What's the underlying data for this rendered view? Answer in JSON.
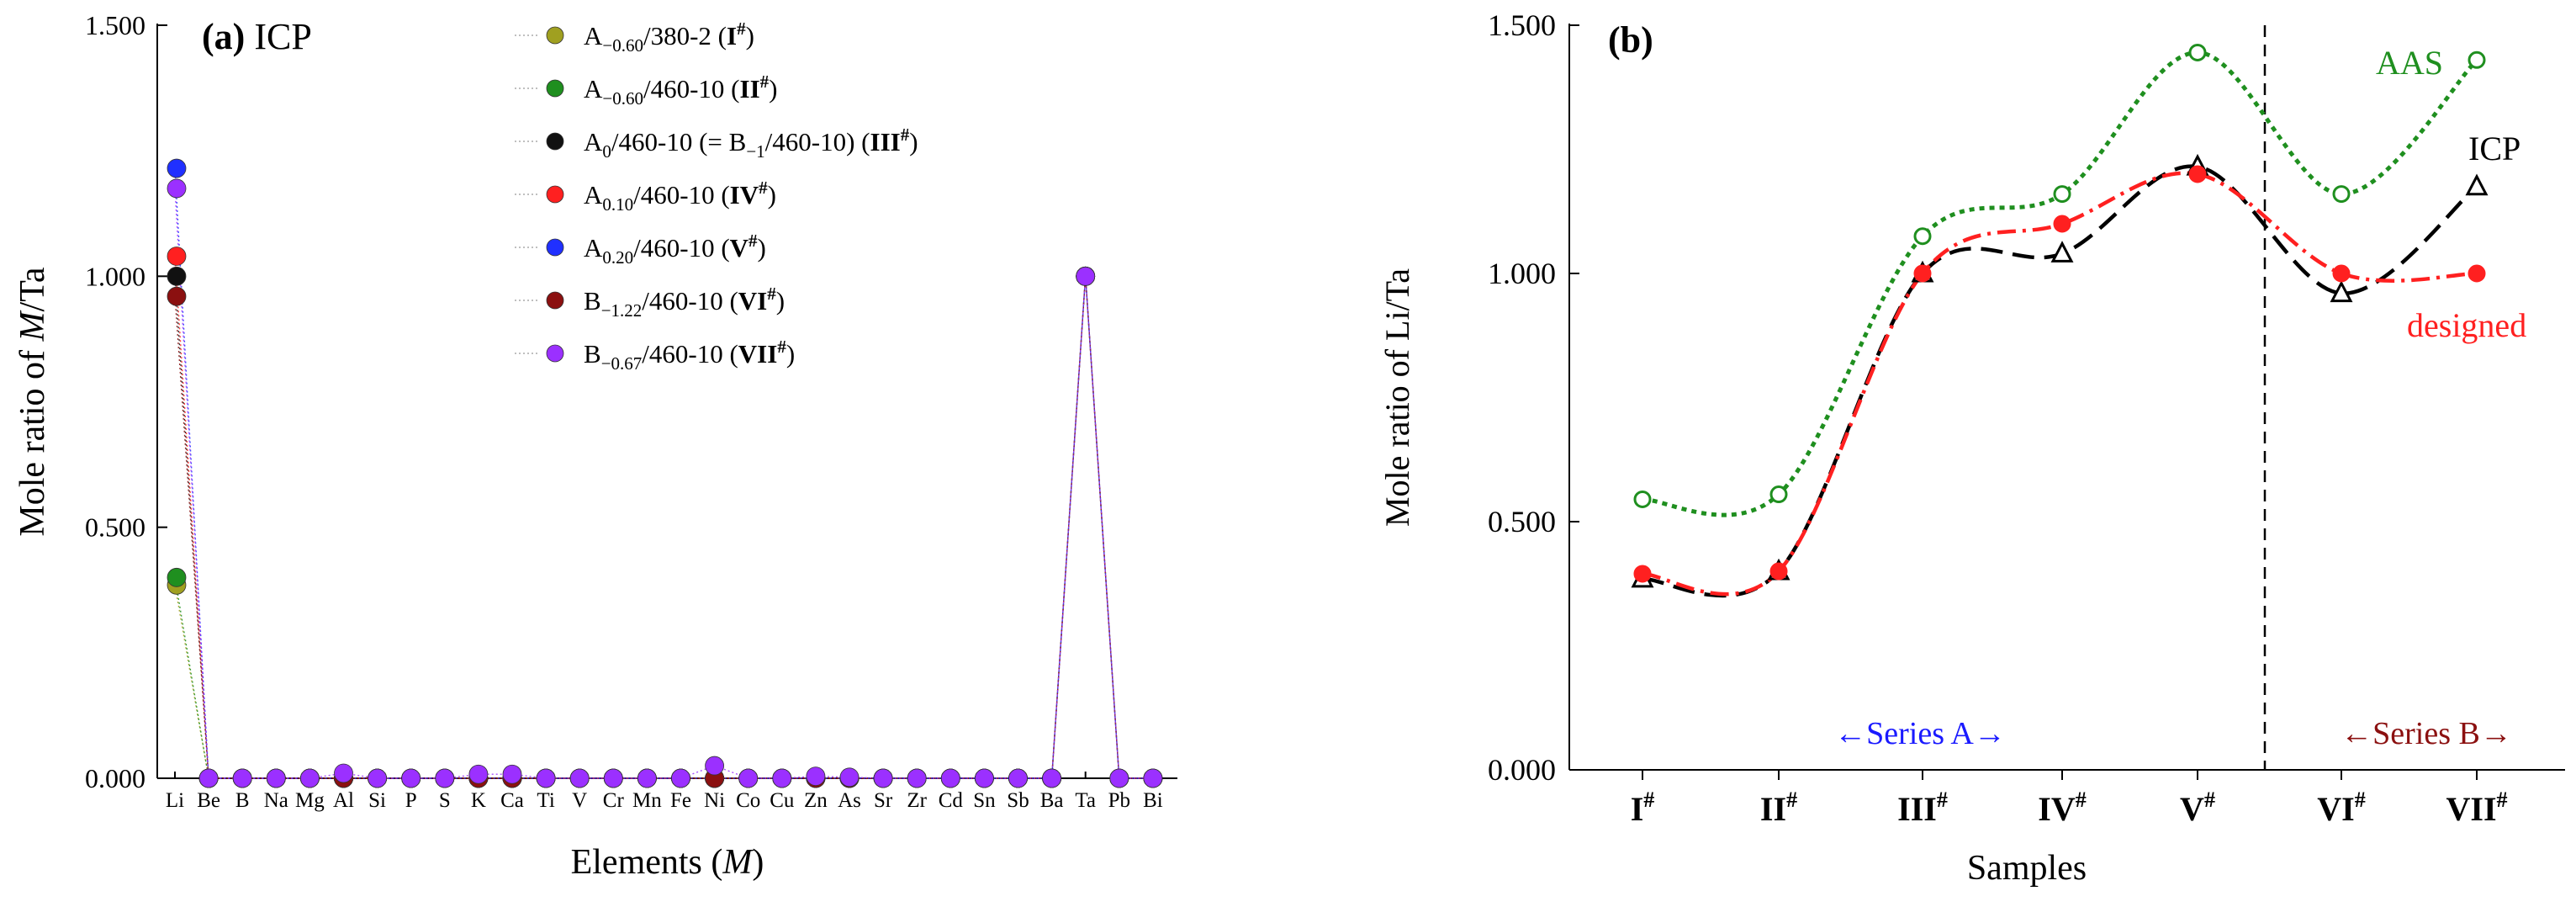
{
  "chart_data": [
    {
      "panel": "(a)",
      "title": "ICP",
      "type": "scatter",
      "xlabel": "Elements (M)",
      "ylabel": "Mole ratio of M/Ta",
      "ylim": [
        0,
        1.5
      ],
      "yticks": [
        "0.000",
        "0.500",
        "1.000",
        "1.500"
      ],
      "categories": [
        "Li",
        "Be",
        "B",
        "Na",
        "Mg",
        "Al",
        "Si",
        "P",
        "S",
        "K",
        "Ca",
        "Ti",
        "V",
        "Cr",
        "Mn",
        "Fe",
        "Ni",
        "Co",
        "Cu",
        "Zn",
        "As",
        "Sr",
        "Zr",
        "Cd",
        "Sn",
        "Sb",
        "Ba",
        "Ta",
        "Pb",
        "Bi"
      ],
      "series": [
        {
          "name": "A−0.60/380-2 (I#)",
          "legend": {
            "base": "A",
            "sub": "−0.60",
            "rest": "/380-2 (",
            "bold": "I",
            "sup": "#",
            "tail": ")"
          },
          "color": "#a0a020",
          "values": [
            0.385,
            0,
            0,
            0,
            0,
            0,
            0,
            0,
            0,
            0,
            0,
            0,
            0,
            0,
            0,
            0,
            0,
            0,
            0,
            0,
            0,
            0,
            0,
            0,
            0,
            0,
            0,
            1.0,
            0,
            0
          ]
        },
        {
          "name": "A−0.60/460-10 (II#)",
          "legend": {
            "base": "A",
            "sub": "−0.60",
            "rest": "/460-10 (",
            "bold": "II",
            "sup": "#",
            "tail": ")"
          },
          "color": "#1f8f1f",
          "values": [
            0.4,
            0,
            0,
            0,
            0,
            0,
            0,
            0,
            0,
            0,
            0,
            0,
            0,
            0,
            0,
            0,
            0,
            0,
            0,
            0,
            0,
            0,
            0,
            0,
            0,
            0,
            0,
            1.0,
            0,
            0
          ]
        },
        {
          "name": "A0/460-10 (= B−1/460-10) (III#)",
          "legend": {
            "base": "A",
            "sub": "0",
            "rest": "/460-10 (= B",
            "sub2": "−1",
            "rest2": "/460-10) (",
            "bold": "III",
            "sup": "#",
            "tail": ")"
          },
          "color": "#111111",
          "values": [
            1.0,
            0,
            0,
            0,
            0,
            0,
            0,
            0,
            0,
            0,
            0,
            0,
            0,
            0,
            0,
            0,
            0,
            0,
            0,
            0,
            0,
            0,
            0,
            0,
            0,
            0,
            0,
            1.0,
            0,
            0
          ]
        },
        {
          "name": "A0.10/460-10 (IV#)",
          "legend": {
            "base": "A",
            "sub": "0.10",
            "rest": "/460-10 (",
            "bold": "IV",
            "sup": "#",
            "tail": ")"
          },
          "color": "#ff2020",
          "values": [
            1.04,
            0,
            0,
            0,
            0,
            0,
            0,
            0,
            0,
            0,
            0,
            0,
            0,
            0,
            0,
            0,
            0,
            0,
            0,
            0,
            0,
            0,
            0,
            0,
            0,
            0,
            0,
            1.0,
            0,
            0
          ]
        },
        {
          "name": "A0.20/460-10 (V#)",
          "legend": {
            "base": "A",
            "sub": "0.20",
            "rest": "/460-10 (",
            "bold": "V",
            "sup": "#",
            "tail": ")"
          },
          "color": "#2030ff",
          "values": [
            1.215,
            0,
            0,
            0,
            0,
            0,
            0,
            0,
            0,
            0,
            0,
            0,
            0,
            0,
            0,
            0,
            0,
            0,
            0,
            0,
            0,
            0,
            0,
            0,
            0,
            0,
            0,
            1.0,
            0,
            0
          ]
        },
        {
          "name": "B−1.22/460-10 (VI#)",
          "legend": {
            "base": "B",
            "sub": "−1.22",
            "rest": "/460-10 (",
            "bold": "VI",
            "sup": "#",
            "tail": ")"
          },
          "color": "#8b1010",
          "values": [
            0.96,
            0,
            0,
            0,
            0,
            0,
            0,
            0,
            0,
            0,
            0,
            0,
            0,
            0,
            0,
            0,
            0,
            0,
            0,
            0,
            0,
            0,
            0,
            0,
            0,
            0,
            0,
            1.0,
            0,
            0
          ]
        },
        {
          "name": "B−0.67/460-10 (VII#)",
          "legend": {
            "base": "B",
            "sub": "−0.67",
            "rest": "/460-10 (",
            "bold": "VII",
            "sup": "#",
            "tail": ")"
          },
          "color": "#9b30ff",
          "values": [
            1.175,
            0,
            0,
            0,
            0,
            0.01,
            0,
            0,
            0,
            0.008,
            0.008,
            0,
            0,
            0,
            0,
            0,
            0.025,
            0,
            0,
            0.004,
            0.002,
            0,
            0,
            0,
            0,
            0,
            0,
            1.0,
            0,
            0
          ]
        }
      ]
    },
    {
      "panel": "(b)",
      "type": "line",
      "xlabel": "Samples",
      "ylabel": "Mole ratio of Li/Ta",
      "ylim": [
        0,
        1.5
      ],
      "yticks": [
        "0.000",
        "0.500",
        "1.000",
        "1.500"
      ],
      "categories": [
        "I",
        "II",
        "III",
        "IV",
        "V",
        "VI",
        "VII"
      ],
      "category_sup": "#",
      "series": [
        {
          "name": "AAS",
          "color": "#1f8f1f",
          "marker": "open-circle",
          "style": "dotted",
          "values": [
            0.545,
            0.555,
            1.075,
            1.16,
            1.445,
            1.16,
            1.43
          ]
        },
        {
          "name": "ICP",
          "color": "#000000",
          "marker": "open-triangle",
          "style": "dashed",
          "values": [
            0.385,
            0.4,
            1.0,
            1.04,
            1.215,
            0.96,
            1.175
          ]
        },
        {
          "name": "designed",
          "color": "#ff2020",
          "marker": "filled-circle",
          "style": "dash-dot",
          "values": [
            0.395,
            0.4,
            1.0,
            1.1,
            1.2,
            1.0,
            1.0
          ]
        }
      ],
      "annotations": {
        "series_a": "←Series A→",
        "series_b": "←Series B→",
        "series_a_color": "#1a1aff",
        "series_b_color": "#8b1010"
      }
    }
  ]
}
